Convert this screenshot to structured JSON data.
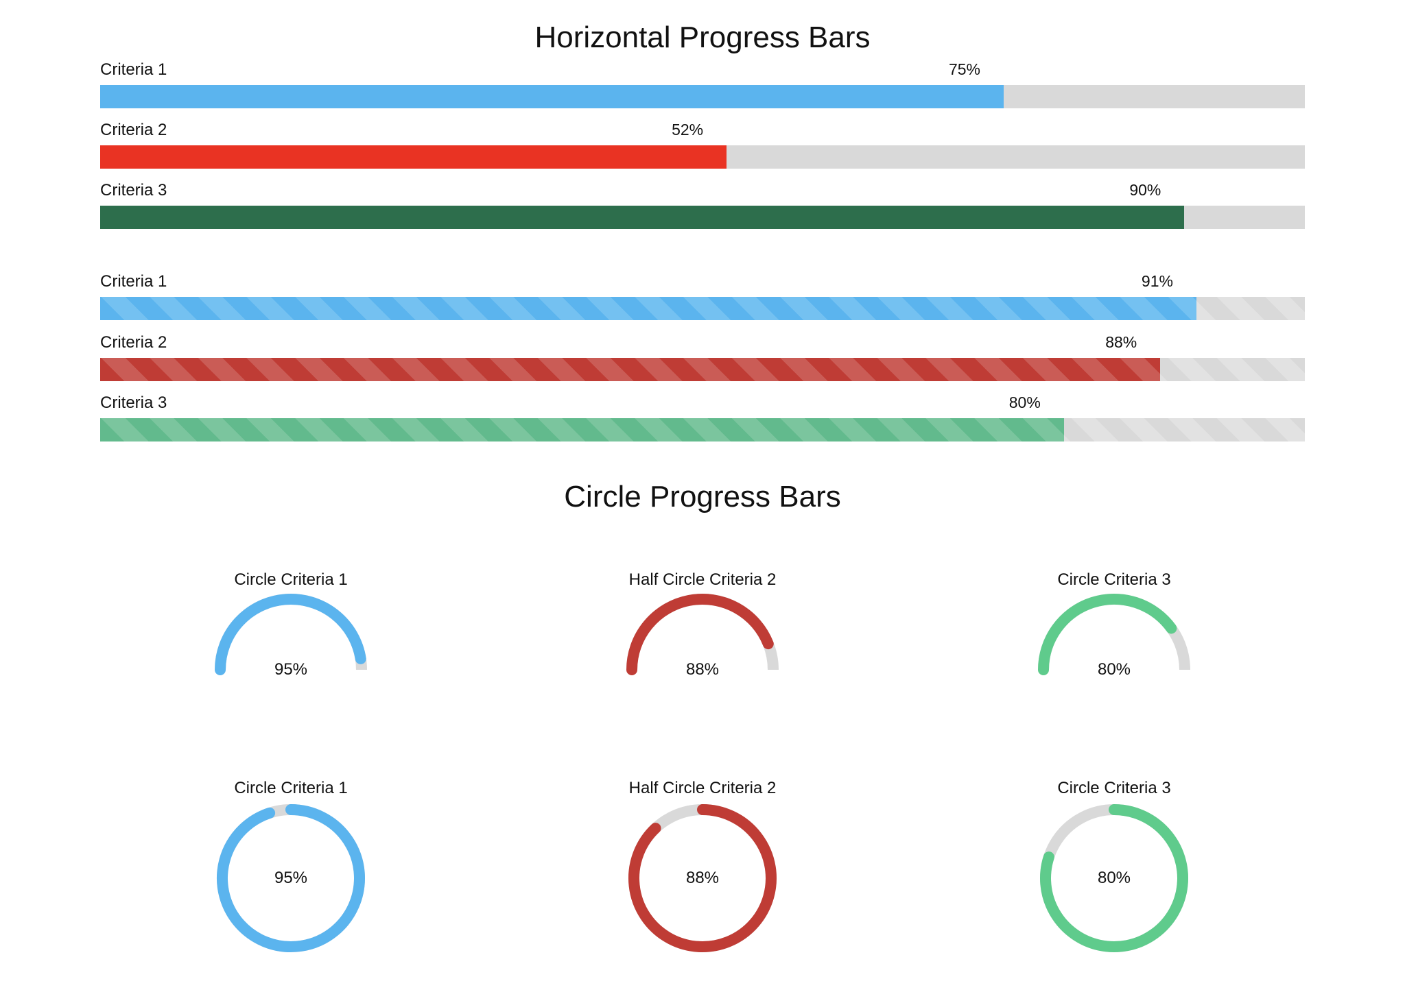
{
  "chart_data": [
    {
      "type": "bar",
      "title": "Horizontal Progress Bars",
      "groups": [
        {
          "style": "solid",
          "bars": [
            {
              "label": "Criteria 1",
              "value": 75,
              "value_label": "75%",
              "color": "#5bb4ee"
            },
            {
              "label": "Criteria 2",
              "value": 52,
              "value_label": "52%",
              "color": "#e93323"
            },
            {
              "label": "Criteria 3",
              "value": 90,
              "value_label": "90%",
              "color": "#2d6e4c"
            }
          ]
        },
        {
          "style": "striped",
          "bars": [
            {
              "label": "Criteria 1",
              "value": 91,
              "value_label": "91%",
              "color": "#5bb4ee",
              "stripe": "#74c1f1"
            },
            {
              "label": "Criteria 2",
              "value": 88,
              "value_label": "88%",
              "color": "#bf3c35",
              "stripe": "#ca5c56"
            },
            {
              "label": "Criteria 3",
              "value": 80,
              "value_label": "80%",
              "color": "#62ba8d",
              "stripe": "#7bc59e"
            }
          ]
        }
      ],
      "track_color": "#d9d9d9",
      "range": [
        0,
        100
      ]
    },
    {
      "type": "pie",
      "title": "Circle Progress Bars",
      "rows": [
        {
          "shape": "half",
          "items": [
            {
              "label": "Circle Criteria 1",
              "value": 95,
              "value_label": "95%",
              "color": "#5bb4ee"
            },
            {
              "label": "Half Circle Criteria 2",
              "value": 88,
              "value_label": "88%",
              "color": "#bf3c35"
            },
            {
              "label": "Circle Criteria 3",
              "value": 80,
              "value_label": "80%",
              "color": "#5fcb8c"
            }
          ]
        },
        {
          "shape": "full",
          "items": [
            {
              "label": "Circle Criteria 1",
              "value": 95,
              "value_label": "95%",
              "color": "#5bb4ee"
            },
            {
              "label": "Half Circle Criteria 2",
              "value": 88,
              "value_label": "88%",
              "color": "#bf3c35"
            },
            {
              "label": "Circle Criteria 3",
              "value": 80,
              "value_label": "80%",
              "color": "#5fcb8c"
            }
          ]
        }
      ],
      "track_color": "#d9d9d9",
      "range": [
        0,
        100
      ]
    }
  ]
}
